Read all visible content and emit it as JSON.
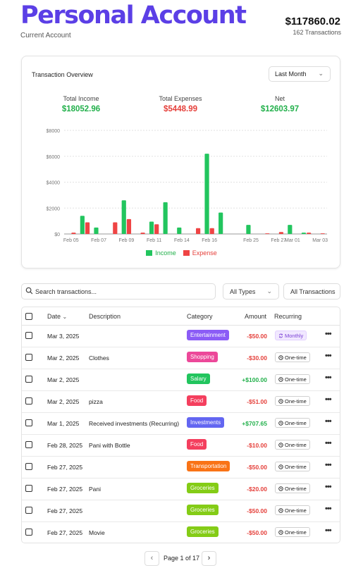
{
  "header": {
    "title": "Personal Account",
    "subtitle": "Current Account",
    "balance": "$117860.02",
    "transaction_count": "162 Transactions"
  },
  "overview": {
    "title": "Transaction Overview",
    "period": "Last Month",
    "stats": [
      {
        "label": "Total Income",
        "value": "$18052.96",
        "tone": "green"
      },
      {
        "label": "Total Expenses",
        "value": "$5448.99",
        "tone": "red"
      },
      {
        "label": "Net",
        "value": "$12603.97",
        "tone": "green"
      }
    ]
  },
  "chart_data": {
    "type": "bar",
    "categories": [
      "Feb 05",
      "Feb 06",
      "Feb 07",
      "Feb 08",
      "Feb 09",
      "Feb 10",
      "Feb 11",
      "Feb 12",
      "Feb 14",
      "Feb 15",
      "Feb 16",
      "Feb 17",
      "Feb 18",
      "Feb 25",
      "Feb 26",
      "Feb 27",
      "Mar 01",
      "Mar 02",
      "Mar 03"
    ],
    "x_tick_labels": [
      "Feb 05",
      "Feb 07",
      "Feb 09",
      "Feb 11",
      "Feb 14",
      "Feb 16",
      "Feb 25",
      "Feb 27",
      "Mar 01",
      "Mar 03"
    ],
    "series": [
      {
        "name": "Income",
        "color": "#22c55e",
        "values": [
          0,
          1400,
          500,
          0,
          2600,
          0,
          950,
          2450,
          500,
          0,
          6200,
          1650,
          0,
          700,
          0,
          0,
          700,
          100,
          0
        ]
      },
      {
        "name": "Expense",
        "color": "#ef4444",
        "values": [
          100,
          900,
          0,
          900,
          1150,
          100,
          750,
          0,
          0,
          450,
          450,
          0,
          0,
          0,
          50,
          150,
          0,
          100,
          50
        ]
      }
    ],
    "y_ticks": [
      "$0",
      "$2000",
      "$4000",
      "$6000",
      "$8000"
    ],
    "ylim": [
      0,
      8000
    ],
    "grid": true,
    "legend": "bottom-center"
  },
  "controls": {
    "search_placeholder": "Search transactions...",
    "type_filter": "All Types",
    "txn_filter": "All Transactions"
  },
  "table": {
    "columns": {
      "date": "Date",
      "description": "Description",
      "category": "Category",
      "amount": "Amount",
      "recurring": "Recurring"
    },
    "rows": [
      {
        "date": "Mar 3, 2025",
        "description": "",
        "category": "Entertainment",
        "cat_color": "#8b5cf6",
        "amount": "-$50.00",
        "sign": "neg",
        "recurring": "Monthly"
      },
      {
        "date": "Mar 2, 2025",
        "description": "Clothes",
        "category": "Shopping",
        "cat_color": "#ec4899",
        "amount": "-$30.00",
        "sign": "neg",
        "recurring": "One-time"
      },
      {
        "date": "Mar 2, 2025",
        "description": "",
        "category": "Salary",
        "cat_color": "#22c55e",
        "amount": "+$100.00",
        "sign": "pos",
        "recurring": "One-time"
      },
      {
        "date": "Mar 2, 2025",
        "description": "pizza",
        "category": "Food",
        "cat_color": "#f43f5e",
        "amount": "-$51.00",
        "sign": "neg",
        "recurring": "One-time"
      },
      {
        "date": "Mar 1, 2025",
        "description": "Received investments (Recurring)",
        "category": "Investments",
        "cat_color": "#6366f1",
        "amount": "+$707.65",
        "sign": "pos",
        "recurring": "One-time"
      },
      {
        "date": "Feb 28, 2025",
        "description": "Pani with Bottle",
        "category": "Food",
        "cat_color": "#f43f5e",
        "amount": "-$10.00",
        "sign": "neg",
        "recurring": "One-time"
      },
      {
        "date": "Feb 27, 2025",
        "description": "",
        "category": "Transportation",
        "cat_color": "#f97316",
        "amount": "-$50.00",
        "sign": "neg",
        "recurring": "One-time"
      },
      {
        "date": "Feb 27, 2025",
        "description": "Pani",
        "category": "Groceries",
        "cat_color": "#84cc16",
        "amount": "-$20.00",
        "sign": "neg",
        "recurring": "One-time"
      },
      {
        "date": "Feb 27, 2025",
        "description": "",
        "category": "Groceries",
        "cat_color": "#84cc16",
        "amount": "-$50.00",
        "sign": "neg",
        "recurring": "One-time"
      },
      {
        "date": "Feb 27, 2025",
        "description": "Movie",
        "category": "Groceries",
        "cat_color": "#84cc16",
        "amount": "-$50.00",
        "sign": "neg",
        "recurring": "One-time"
      }
    ]
  },
  "pagination": {
    "label": "Page 1 of 17",
    "prev": "‹",
    "next": "›"
  },
  "icons": {
    "search": "search-icon",
    "chevron": "chevron-down-icon",
    "clock": "clock-icon",
    "repeat": "repeat-icon",
    "more": "more-horizontal-icon"
  }
}
